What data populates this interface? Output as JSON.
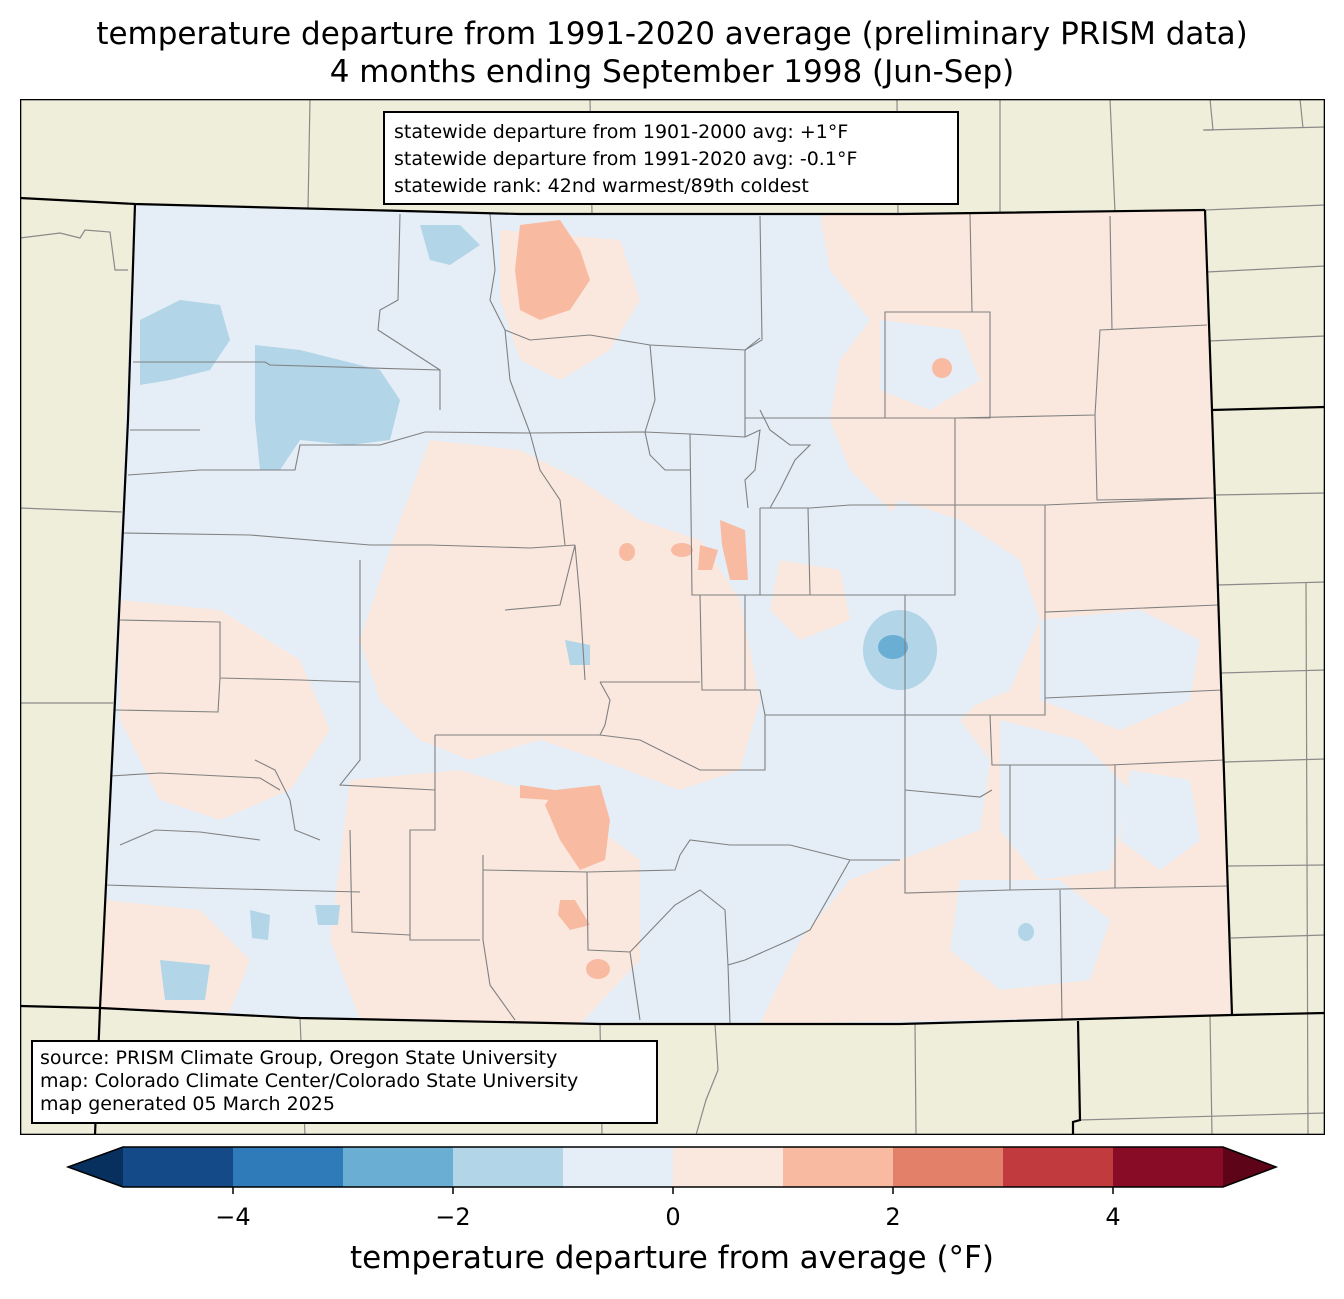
{
  "title_line1": "temperature departure from 1991-2020 average (preliminary PRISM data)",
  "title_line2": "4 months ending September 1998 (Jun-Sep)",
  "stats": {
    "line1": "statewide departure from 1901-2000 avg: +1°F",
    "line2": "statewide departure from 1991-2020 avg: -0.1°F",
    "line3": "statewide rank: 42nd warmest/89th coldest"
  },
  "credits": {
    "line1": "source: PRISM Climate Group, Oregon State University",
    "line2": "map: Colorado Climate Center/Colorado State University",
    "line3": "map generated 05 March 2025"
  },
  "colorbar": {
    "label": "temperature departure from average (°F)",
    "ticks": [
      -4,
      -2,
      0,
      2,
      4
    ],
    "range": [
      -5,
      5
    ],
    "bins": [
      {
        "from": -5,
        "to": -4,
        "color": "#134a87"
      },
      {
        "from": -4,
        "to": -3,
        "color": "#2f7ab8"
      },
      {
        "from": -3,
        "to": -2,
        "color": "#6aaed3"
      },
      {
        "from": -2,
        "to": -1,
        "color": "#b2d5e8"
      },
      {
        "from": -1,
        "to": 0,
        "color": "#e5eef7"
      },
      {
        "from": 0,
        "to": 1,
        "color": "#fae8df"
      },
      {
        "from": 1,
        "to": 2,
        "color": "#f8bba2"
      },
      {
        "from": 2,
        "to": 3,
        "color": "#e3806a"
      },
      {
        "from": 3,
        "to": 4,
        "color": "#c13a3e"
      },
      {
        "from": 4,
        "to": 5,
        "color": "#880c26"
      }
    ],
    "under_color": "#07305f",
    "over_color": "#5e0419"
  },
  "map_colors": {
    "land": "#efeedb",
    "cool_fill": "#e5eef7",
    "warm_fill": "#fae8df"
  }
}
